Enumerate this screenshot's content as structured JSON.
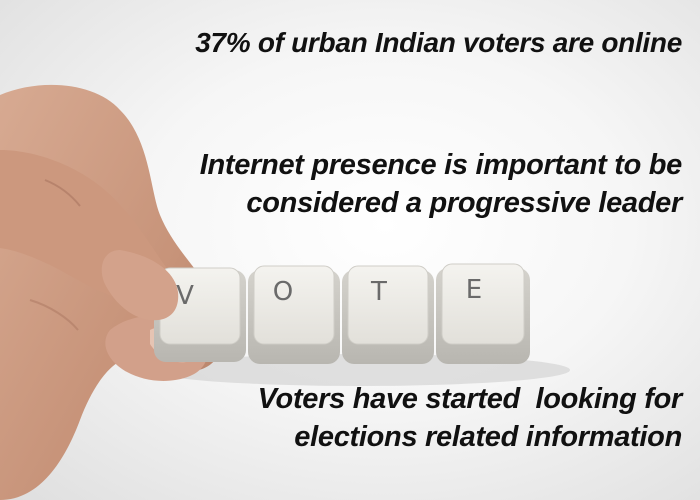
{
  "captions": {
    "stat": "37% of urban Indian voters are online",
    "presence_line1": "Internet presence is important to be",
    "presence_line2": "considered a progressive leader",
    "voters_line1": "Voters have started  looking for",
    "voters_line2": "elections related information"
  },
  "keys": [
    "V",
    "O",
    "T",
    "E"
  ],
  "illustration": "hand pressing keyboard keys spelling VOTE"
}
